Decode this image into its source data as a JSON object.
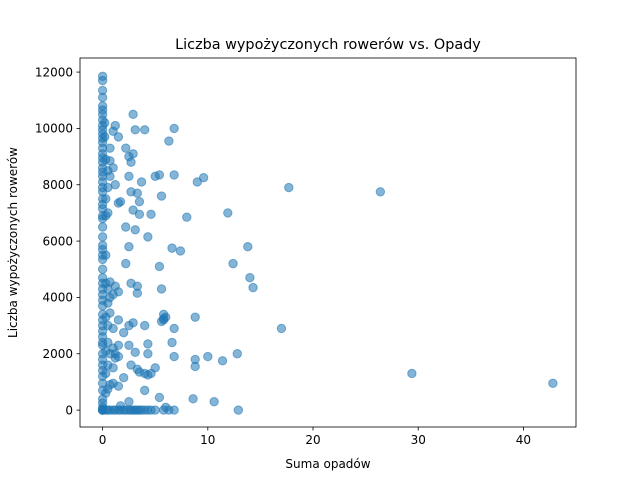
{
  "chart_data": {
    "type": "scatter",
    "title": "Liczba wypożyczonych rowerów vs. Opady",
    "xlabel": "Suma opadów",
    "ylabel": "Liczba wypożyczonych rowerów",
    "xlim": [
      -2.15,
      45
    ],
    "ylim": [
      -600,
      12500
    ],
    "xticks": [
      0,
      10,
      20,
      30,
      40
    ],
    "yticks": [
      0,
      2000,
      4000,
      6000,
      8000,
      10000,
      12000
    ],
    "grid": false,
    "legend": "none",
    "marker_color": "#1f77b4",
    "marker_alpha": 0.55,
    "points": [
      [
        0,
        11850
      ],
      [
        0,
        11700
      ],
      [
        0,
        11350
      ],
      [
        0,
        11100
      ],
      [
        0,
        10800
      ],
      [
        0,
        10650
      ],
      [
        0,
        10500
      ],
      [
        0,
        10300
      ],
      [
        0,
        10100
      ],
      [
        0,
        9950
      ],
      [
        0,
        9800
      ],
      [
        0,
        9650
      ],
      [
        0,
        9500
      ],
      [
        0,
        9300
      ],
      [
        0,
        9100
      ],
      [
        0,
        8950
      ],
      [
        0,
        8800
      ],
      [
        0,
        8600
      ],
      [
        0,
        8450
      ],
      [
        0,
        8300
      ],
      [
        0,
        8100
      ],
      [
        0,
        7900
      ],
      [
        0,
        7750
      ],
      [
        0,
        7500
      ],
      [
        0,
        7300
      ],
      [
        0,
        7150
      ],
      [
        0,
        6900
      ],
      [
        0,
        6800
      ],
      [
        0,
        6500
      ],
      [
        0,
        6150
      ],
      [
        0,
        5850
      ],
      [
        0,
        5700
      ],
      [
        0,
        5500
      ],
      [
        0,
        5350
      ],
      [
        0,
        5000
      ],
      [
        0,
        4700
      ],
      [
        0,
        4500
      ],
      [
        0,
        4300
      ],
      [
        0,
        4100
      ],
      [
        0,
        3900
      ],
      [
        0,
        3700
      ],
      [
        0,
        3400
      ],
      [
        0,
        3200
      ],
      [
        0,
        3000
      ],
      [
        0,
        2800
      ],
      [
        0,
        2600
      ],
      [
        0,
        2400
      ],
      [
        0,
        2300
      ],
      [
        0,
        2000
      ],
      [
        0,
        1800
      ],
      [
        0,
        1600
      ],
      [
        0,
        1400
      ],
      [
        0,
        1200
      ],
      [
        0,
        950
      ],
      [
        0,
        700
      ],
      [
        0,
        400
      ],
      [
        0,
        250
      ],
      [
        0,
        100
      ],
      [
        0,
        30
      ],
      [
        0,
        0
      ],
      [
        0,
        0
      ],
      [
        0,
        0
      ],
      [
        0.2,
        10200
      ],
      [
        0.2,
        9700
      ],
      [
        0.3,
        8900
      ],
      [
        0.3,
        7500
      ],
      [
        0.3,
        6900
      ],
      [
        0.3,
        5500
      ],
      [
        0.3,
        4500
      ],
      [
        0.3,
        3300
      ],
      [
        0.3,
        2100
      ],
      [
        0.3,
        1300
      ],
      [
        0.3,
        600
      ],
      [
        0.3,
        0
      ],
      [
        0.5,
        8500
      ],
      [
        0.5,
        7900
      ],
      [
        0.5,
        7000
      ],
      [
        0.5,
        4300
      ],
      [
        0.5,
        3800
      ],
      [
        0.5,
        3000
      ],
      [
        0.5,
        2400
      ],
      [
        0.5,
        1600
      ],
      [
        0.5,
        750
      ],
      [
        0.5,
        0
      ],
      [
        0.7,
        9300
      ],
      [
        0.7,
        8850
      ],
      [
        0.7,
        8300
      ],
      [
        0.7,
        4550
      ],
      [
        0.7,
        4000
      ],
      [
        0.7,
        3450
      ],
      [
        0.7,
        2000
      ],
      [
        0.7,
        900
      ],
      [
        0.7,
        0
      ],
      [
        1.0,
        9900
      ],
      [
        1.0,
        8600
      ],
      [
        1.0,
        4100
      ],
      [
        1.0,
        2900
      ],
      [
        1.0,
        2200
      ],
      [
        1.0,
        1500
      ],
      [
        1.0,
        950
      ],
      [
        1.0,
        0
      ],
      [
        1.2,
        10100
      ],
      [
        1.2,
        8000
      ],
      [
        1.2,
        4400
      ],
      [
        1.2,
        2000
      ],
      [
        1.2,
        1850
      ],
      [
        1.2,
        0
      ],
      [
        1.5,
        9700
      ],
      [
        1.5,
        7350
      ],
      [
        1.5,
        4200
      ],
      [
        1.5,
        3200
      ],
      [
        1.5,
        2300
      ],
      [
        1.5,
        1900
      ],
      [
        1.5,
        850
      ],
      [
        1.5,
        0
      ],
      [
        1.7,
        7400
      ],
      [
        1.7,
        150
      ],
      [
        1.7,
        0
      ],
      [
        2.0,
        2750
      ],
      [
        2.0,
        1150
      ],
      [
        2.0,
        0
      ],
      [
        2.2,
        9300
      ],
      [
        2.2,
        6500
      ],
      [
        2.2,
        5200
      ],
      [
        2.2,
        0
      ],
      [
        2.5,
        9000
      ],
      [
        2.5,
        8300
      ],
      [
        2.5,
        5800
      ],
      [
        2.5,
        3000
      ],
      [
        2.5,
        2300
      ],
      [
        2.5,
        300
      ],
      [
        2.5,
        0
      ],
      [
        2.7,
        8800
      ],
      [
        2.7,
        7750
      ],
      [
        2.7,
        4500
      ],
      [
        2.7,
        1600
      ],
      [
        2.7,
        0
      ],
      [
        2.9,
        10500
      ],
      [
        2.9,
        9100
      ],
      [
        2.9,
        7100
      ],
      [
        2.9,
        3100
      ],
      [
        2.9,
        0
      ],
      [
        3.1,
        9950
      ],
      [
        3.1,
        6400
      ],
      [
        3.1,
        2050
      ],
      [
        3.1,
        0
      ],
      [
        3.3,
        7700
      ],
      [
        3.3,
        4400
      ],
      [
        3.3,
        4150
      ],
      [
        3.3,
        1450
      ],
      [
        3.3,
        0
      ],
      [
        3.5,
        7400
      ],
      [
        3.5,
        6950
      ],
      [
        3.5,
        1350
      ],
      [
        3.5,
        0
      ],
      [
        3.7,
        8100
      ],
      [
        3.7,
        0
      ],
      [
        4.0,
        9950
      ],
      [
        4.0,
        3000
      ],
      [
        4.0,
        1300
      ],
      [
        4.0,
        700
      ],
      [
        4.0,
        0
      ],
      [
        4.3,
        6150
      ],
      [
        4.3,
        2350
      ],
      [
        4.3,
        2000
      ],
      [
        4.3,
        1250
      ],
      [
        4.3,
        0
      ],
      [
        4.6,
        6950
      ],
      [
        4.6,
        1300
      ],
      [
        4.6,
        0
      ],
      [
        5.0,
        8300
      ],
      [
        5.0,
        1500
      ],
      [
        5.0,
        0
      ],
      [
        5.4,
        8350
      ],
      [
        5.4,
        5100
      ],
      [
        5.4,
        450
      ],
      [
        5.6,
        7600
      ],
      [
        5.6,
        4300
      ],
      [
        5.6,
        3150
      ],
      [
        5.8,
        3400
      ],
      [
        5.8,
        3250
      ],
      [
        5.8,
        3200
      ],
      [
        5.8,
        0
      ],
      [
        6.0,
        3300
      ],
      [
        6.0,
        100
      ],
      [
        6.3,
        9550
      ],
      [
        6.3,
        0
      ],
      [
        6.6,
        5750
      ],
      [
        6.6,
        2400
      ],
      [
        6.8,
        10000
      ],
      [
        6.8,
        8350
      ],
      [
        6.8,
        2900
      ],
      [
        6.8,
        1900
      ],
      [
        6.8,
        0
      ],
      [
        7.4,
        5650
      ],
      [
        8.0,
        6850
      ],
      [
        8.6,
        400
      ],
      [
        8.8,
        3300
      ],
      [
        8.8,
        1800
      ],
      [
        8.8,
        1550
      ],
      [
        9.0,
        8100
      ],
      [
        9.6,
        8250
      ],
      [
        10.0,
        1900
      ],
      [
        10.6,
        300
      ],
      [
        11.4,
        1750
      ],
      [
        11.9,
        7000
      ],
      [
        12.4,
        5200
      ],
      [
        12.8,
        2000
      ],
      [
        12.9,
        0
      ],
      [
        13.8,
        5800
      ],
      [
        14.0,
        4700
      ],
      [
        14.3,
        4350
      ],
      [
        17.0,
        2900
      ],
      [
        17.7,
        7900
      ],
      [
        26.4,
        7750
      ],
      [
        29.4,
        1300
      ],
      [
        42.8,
        950
      ]
    ]
  }
}
